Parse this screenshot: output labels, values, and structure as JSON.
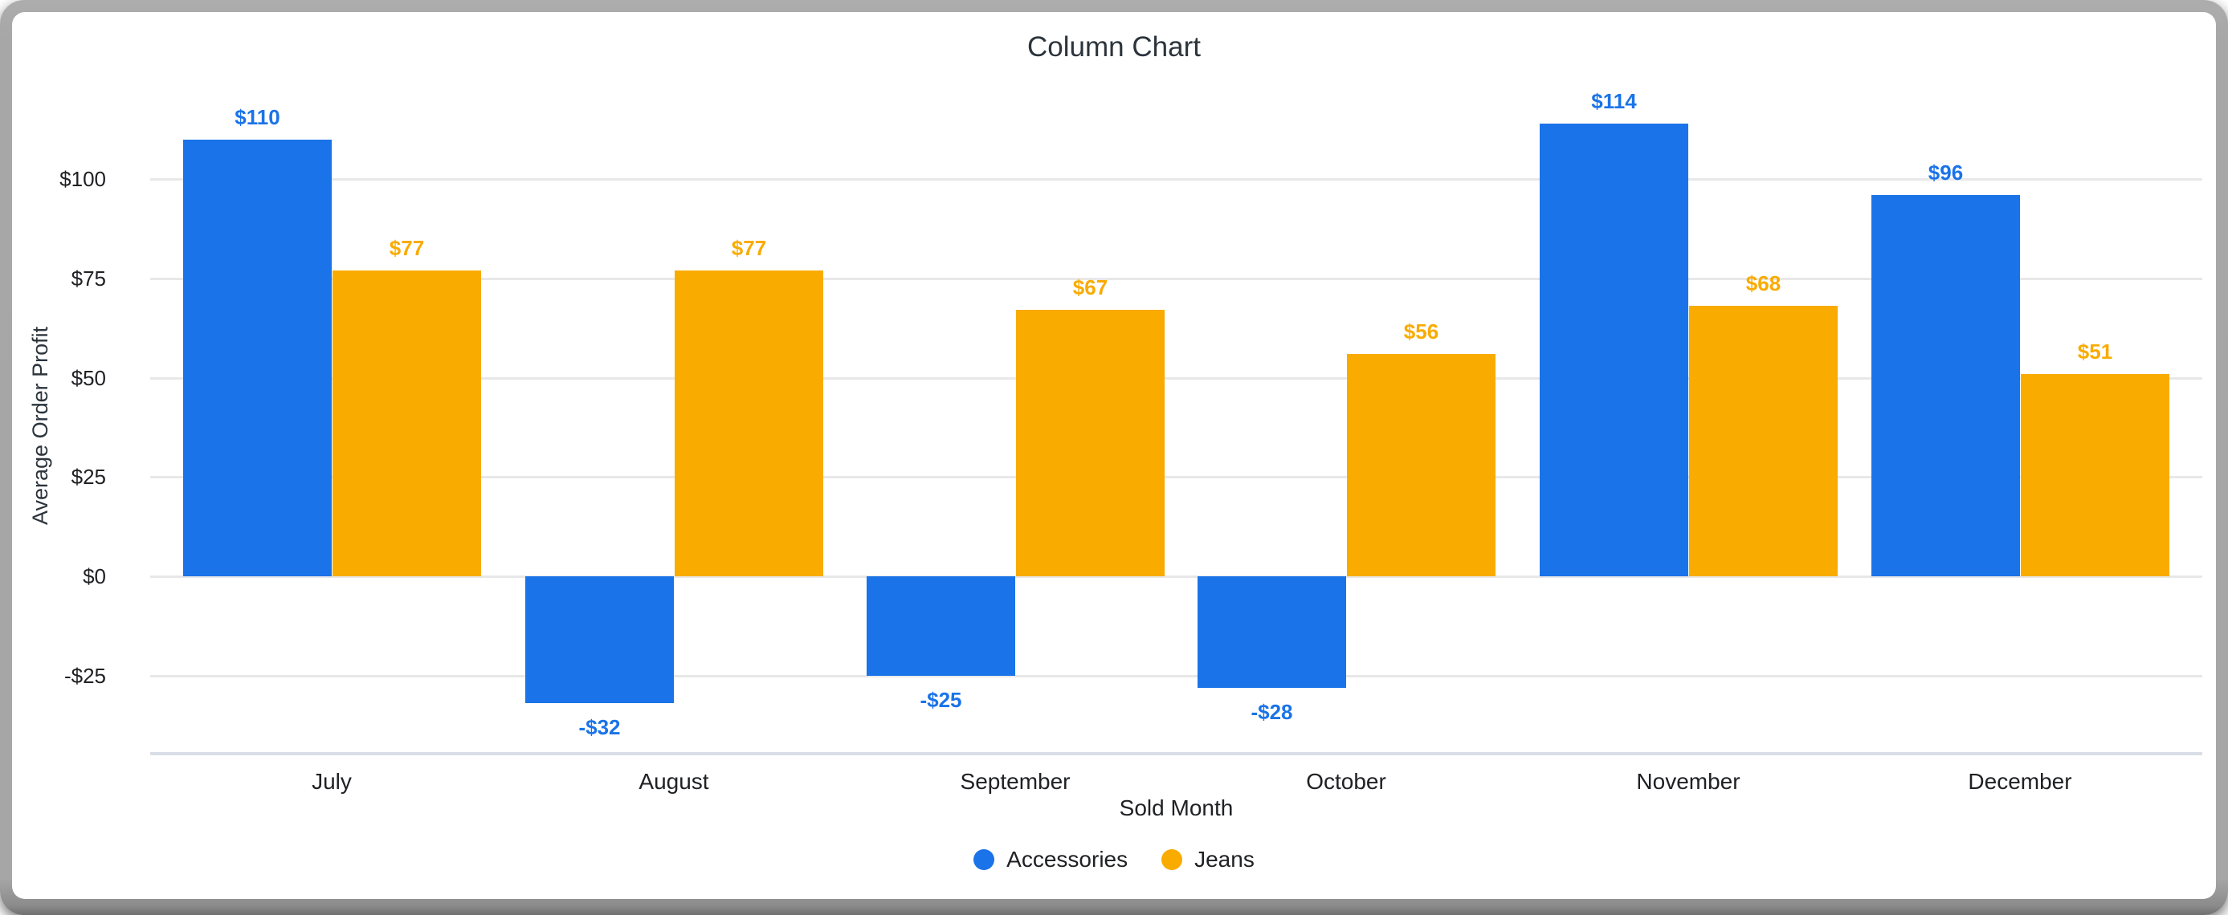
{
  "window": {
    "frame_color": "#a6a6a6",
    "card_color": "#ffffff"
  },
  "chart_data": {
    "type": "bar",
    "title": "Column Chart",
    "xlabel": "Sold Month",
    "ylabel": "Average Order Profit",
    "categories": [
      "July",
      "August",
      "September",
      "October",
      "November",
      "December"
    ],
    "series": [
      {
        "name": "Accessories",
        "color": "#1a73e8",
        "values": [
          110,
          -32,
          -25,
          -28,
          114,
          96
        ],
        "value_labels": [
          "$110",
          "-$32",
          "-$25",
          "-$28",
          "$114",
          "$96"
        ]
      },
      {
        "name": "Jeans",
        "color": "#f9ab00",
        "values": [
          77,
          77,
          67,
          56,
          68,
          51
        ],
        "value_labels": [
          "$77",
          "$77",
          "$67",
          "$56",
          "$68",
          "$51"
        ]
      }
    ],
    "y_ticks": {
      "values": [
        100,
        75,
        50,
        25,
        0,
        -25
      ],
      "labels": [
        "$100",
        "$75",
        "$50",
        "$25",
        "$0",
        "-$25"
      ]
    },
    "ylim": [
      -45,
      128
    ],
    "grid": true,
    "legend_position": "bottom",
    "styles": {
      "gridline_color": "#e8e8e8",
      "axis_line_color": "#d9dee8",
      "title_color": "#2c343c",
      "text_color": "#202124"
    }
  }
}
